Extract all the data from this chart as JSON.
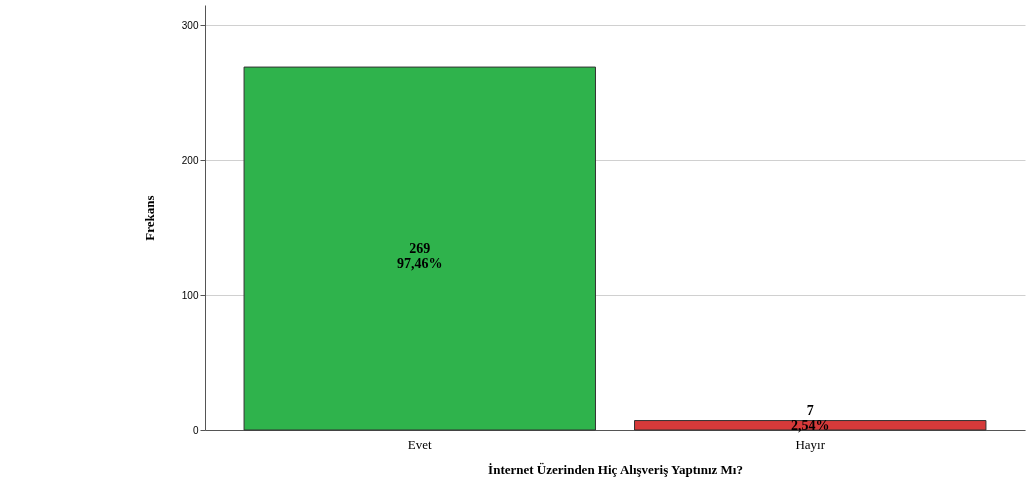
{
  "chart_data": {
    "type": "bar",
    "xlabel": "İnternet Üzerinden Hiç Alışveriş Yaptınız Mı?",
    "ylabel": "Frekans",
    "categories": [
      "Evet",
      "Hayır"
    ],
    "values": [
      269,
      7
    ],
    "colors": [
      "#2fb34c",
      "#d63a3a"
    ],
    "value_labels": [
      "269\n97,46%",
      "7\n2,54%"
    ],
    "ylim": [
      0,
      315
    ],
    "yticks": [
      0,
      100,
      200,
      300
    ],
    "grid": "y"
  }
}
